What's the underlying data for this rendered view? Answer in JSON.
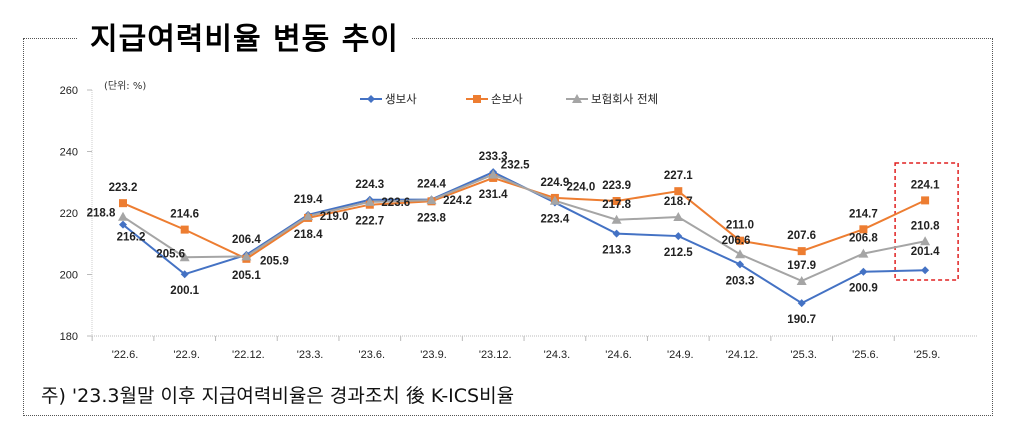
{
  "title": "지급여력비율 변동 추이",
  "footnote": "주) '23.3월말 이후 지급여력비율은 경과조치 後 K-ICS비율",
  "chart_data": {
    "type": "line",
    "title": "지급여력비율 변동 추이",
    "unit_label": "(단위: %)",
    "xlabel": "",
    "ylabel": "",
    "ylim": [
      180,
      260
    ],
    "yticks": [
      "180",
      "200",
      "220",
      "240",
      "260"
    ],
    "yticks_values": [
      180,
      200,
      220,
      240,
      260
    ],
    "grid": false,
    "legend_position": "top-right",
    "categories": [
      "'22.6.",
      "'22.9.",
      "'22.12.",
      "'23.3.",
      "'23.6.",
      "'23.9.",
      "'23.12.",
      "'24.3.",
      "'24.6.",
      "'24.9.",
      "'24.12.",
      "'25.3.",
      "'25.6.",
      "'25.9."
    ],
    "series": [
      {
        "name": "생보사",
        "color": "#4472C4",
        "marker": "diamond",
        "values": [
          216.2,
          200.1,
          206.4,
          219.4,
          224.3,
          224.4,
          233.3,
          223.4,
          213.3,
          212.5,
          203.3,
          190.7,
          200.9,
          201.4
        ],
        "labels": [
          "216.2",
          "200.1",
          "206.4",
          "219.4",
          "224.3",
          "224.4",
          "233.3",
          "223.4",
          "213.3",
          "212.5",
          "203.3",
          "190.7",
          "200.9",
          "201.4"
        ]
      },
      {
        "name": "손보사",
        "color": "#ED7D31",
        "marker": "square",
        "values": [
          223.2,
          214.6,
          205.1,
          218.4,
          222.7,
          223.8,
          231.4,
          224.9,
          223.9,
          227.1,
          211.0,
          207.6,
          214.7,
          224.1
        ],
        "labels": [
          "223.2",
          "214.6",
          "205.1",
          "218.4",
          "222.7",
          "223.8",
          "231.4",
          "224.9",
          "223.9",
          "227.1",
          "211.0",
          "207.6",
          "214.7",
          "224.1"
        ]
      },
      {
        "name": "보험회사 전체",
        "color": "#A5A5A5",
        "marker": "triangle",
        "values": [
          218.8,
          205.6,
          205.9,
          219.0,
          223.6,
          224.2,
          232.5,
          224.0,
          217.8,
          218.7,
          206.6,
          197.9,
          206.8,
          210.8
        ],
        "labels": [
          "218.8",
          "205.6",
          "205.9",
          "219.0",
          "223.6",
          "224.2",
          "232.5",
          "224.0",
          "217.8",
          "218.7",
          "206.6",
          "197.9",
          "206.8",
          "210.8"
        ]
      }
    ],
    "highlight_category": "'25.9.",
    "highlight_color": "#E02020"
  }
}
